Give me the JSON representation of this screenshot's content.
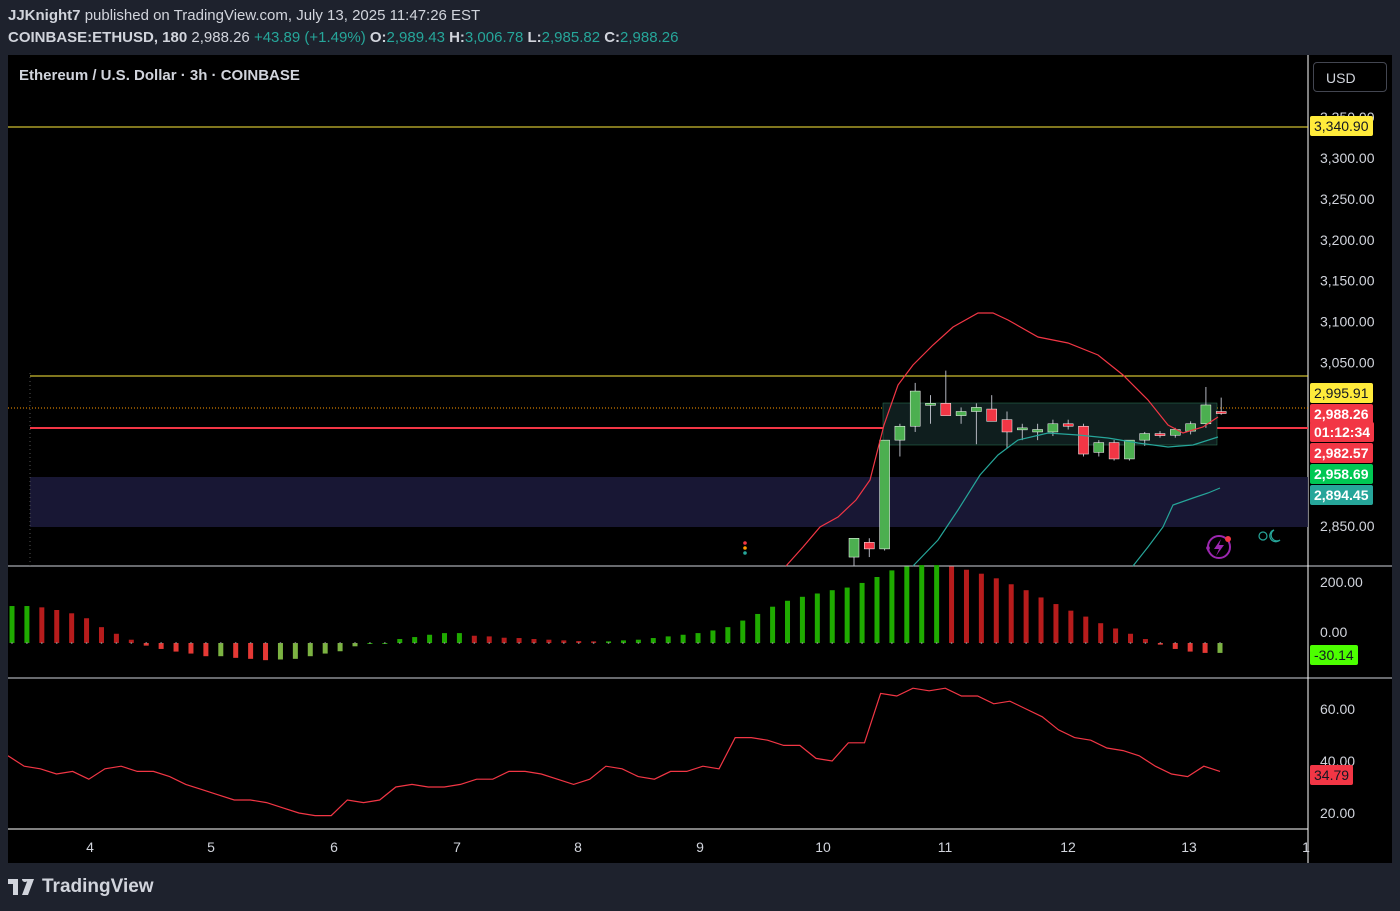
{
  "header": {
    "author": "JJKnight7",
    "published": "published on TradingView.com, July 13, 2025 11:47:26 EST",
    "symbol": "COINBASE:ETHUSD, 180",
    "price": "2,988.26",
    "change": "+43.89 (+1.49%)",
    "o_label": "O:",
    "o": "2,989.43",
    "h_label": "H:",
    "h": "3,006.78",
    "l_label": "L:",
    "l": "2,985.82",
    "c_label": "C:",
    "c": "2,988.26"
  },
  "chart_title": "Ethereum / U.S. Dollar · 3h · COINBASE",
  "currency_button": "USD",
  "brand": "TradingView",
  "price_axis": [
    "3,350.00",
    "3,300.00",
    "3,250.00",
    "3,200.00",
    "3,150.00",
    "3,100.00",
    "3,050.00",
    "2,850.00"
  ],
  "time_axis": [
    "4",
    "5",
    "6",
    "7",
    "8",
    "9",
    "10",
    "11",
    "12",
    "13",
    "1"
  ],
  "macd_axis": [
    "200.00",
    "0.00"
  ],
  "rsi_axis": [
    "60.00",
    "40.00",
    "20.00"
  ],
  "tags": {
    "level_top": "3,340.90",
    "level_2": "2,995.91",
    "last_price": "2,988.26",
    "countdown": "01:12:34",
    "level_3": "2,982.57",
    "level_4": "2,958.69",
    "level_5": "2,894.45",
    "macd_value": "-30.14",
    "rsi_value": "34.79"
  },
  "colors": {
    "up": "#26a69a",
    "candle_up": "#4caf50",
    "candle_down": "#f23645",
    "yellow": "#ffeb3b",
    "band": "#f23645",
    "band_lower": "#26a69a"
  },
  "chart_data": [
    {
      "type": "candlestick",
      "title": "Ethereum / U.S. Dollar · 3h · COINBASE",
      "ylim": [
        2810,
        3370
      ],
      "candles": [
        {
          "o": 2812,
          "h": 2830,
          "l": 2790,
          "c": 2835
        },
        {
          "o": 2830,
          "h": 2835,
          "l": 2812,
          "c": 2822
        },
        {
          "o": 2822,
          "h": 2955,
          "l": 2820,
          "c": 2955
        },
        {
          "o": 2955,
          "h": 2975,
          "l": 2935,
          "c": 2972
        },
        {
          "o": 2972,
          "h": 3025,
          "l": 2965,
          "c": 3015
        },
        {
          "o": 3000,
          "h": 3010,
          "l": 2975,
          "c": 3000
        },
        {
          "o": 3000,
          "h": 3040,
          "l": 2990,
          "c": 2985
        },
        {
          "o": 2985,
          "h": 2995,
          "l": 2975,
          "c": 2990
        },
        {
          "o": 2990,
          "h": 3000,
          "l": 2950,
          "c": 2995
        },
        {
          "o": 2993,
          "h": 3010,
          "l": 2980,
          "c": 2978
        },
        {
          "o": 2980,
          "h": 2990,
          "l": 2945,
          "c": 2965
        },
        {
          "o": 2968,
          "h": 2975,
          "l": 2955,
          "c": 2970
        },
        {
          "o": 2965,
          "h": 2975,
          "l": 2955,
          "c": 2968
        },
        {
          "o": 2965,
          "h": 2980,
          "l": 2960,
          "c": 2975
        },
        {
          "o": 2975,
          "h": 2980,
          "l": 2968,
          "c": 2972
        },
        {
          "o": 2972,
          "h": 2975,
          "l": 2935,
          "c": 2938
        },
        {
          "o": 2940,
          "h": 2955,
          "l": 2935,
          "c": 2952
        },
        {
          "o": 2952,
          "h": 2955,
          "l": 2930,
          "c": 2932
        },
        {
          "o": 2932,
          "h": 2955,
          "l": 2930,
          "c": 2955
        },
        {
          "o": 2955,
          "h": 2965,
          "l": 2948,
          "c": 2963
        },
        {
          "o": 2963,
          "h": 2966,
          "l": 2958,
          "c": 2961
        },
        {
          "o": 2961,
          "h": 2970,
          "l": 2958,
          "c": 2968
        },
        {
          "o": 2966,
          "h": 2978,
          "l": 2962,
          "c": 2975
        },
        {
          "o": 2975,
          "h": 3020,
          "l": 2970,
          "c": 2998
        },
        {
          "o": 2990,
          "h": 3007,
          "l": 2986,
          "c": 2988
        }
      ],
      "macd_histogram": [
        112,
        112,
        108,
        100,
        90,
        75,
        48,
        28,
        10,
        -8,
        -18,
        -26,
        -32,
        -40,
        -40,
        -45,
        -48,
        -52,
        -50,
        -48,
        -40,
        -32,
        -25,
        -10,
        0,
        0,
        12,
        18,
        25,
        30,
        30,
        22,
        20,
        16,
        15,
        12,
        10,
        8,
        6,
        5,
        5,
        8,
        10,
        15,
        20,
        25,
        30,
        38,
        48,
        68,
        88,
        110,
        128,
        140,
        150,
        160,
        168,
        182,
        200,
        220,
        232,
        236,
        236,
        232,
        222,
        210,
        196,
        178,
        160,
        138,
        118,
        98,
        80,
        60,
        44,
        28,
        12,
        -5,
        -18,
        -26,
        -30,
        -30
      ],
      "rsi": [
        42,
        38,
        37,
        35,
        36,
        33,
        37,
        38,
        36,
        36,
        34,
        31,
        29,
        27,
        25,
        25,
        24,
        22,
        20,
        19,
        19,
        25,
        24,
        25,
        30,
        31,
        30,
        30,
        31,
        33,
        33,
        36,
        36,
        35,
        33,
        31,
        33,
        38,
        37,
        34,
        33,
        36,
        36,
        38,
        37,
        49,
        49,
        48,
        46,
        46,
        41,
        40,
        47,
        47,
        66,
        65,
        68,
        67,
        68,
        65,
        65,
        62,
        63,
        60,
        57,
        52,
        49,
        48,
        45,
        44,
        42,
        38,
        35,
        34,
        38,
        36
      ]
    }
  ]
}
